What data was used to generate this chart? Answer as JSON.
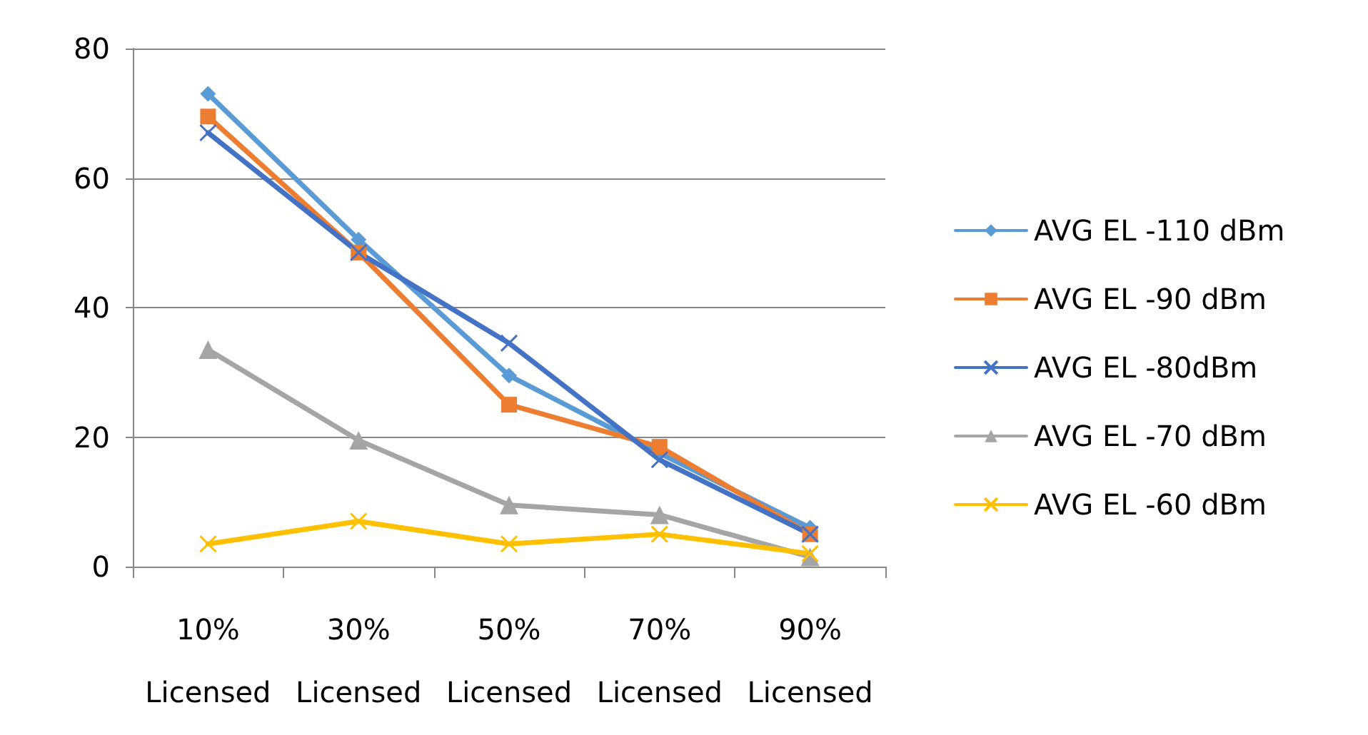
{
  "chart_data": {
    "type": "line",
    "categories": [
      "10% Licensed",
      "30% Licensed",
      "50% Licensed",
      "70% Licensed",
      "90% Licensed"
    ],
    "series": [
      {
        "name": "AVG EL -110 dBm",
        "color": "#5b9bd5",
        "marker": "diamond",
        "values": [
          73,
          50.5,
          29.5,
          17.5,
          6
        ]
      },
      {
        "name": "AVG EL -90 dBm",
        "color": "#ed7d31",
        "marker": "square",
        "values": [
          69.5,
          48.5,
          25,
          18.5,
          5
        ]
      },
      {
        "name": "AVG EL -80dBm",
        "color": "#4472c4",
        "marker": "cross",
        "values": [
          67,
          48.5,
          34.5,
          16.5,
          5
        ]
      },
      {
        "name": "AVG EL -70 dBm",
        "color": "#a5a5a5",
        "marker": "triangle",
        "values": [
          33.5,
          19.5,
          9.5,
          8,
          1.5
        ]
      },
      {
        "name": "AVG EL -60 dBm",
        "color": "#ffc000",
        "marker": "cross",
        "values": [
          3.5,
          7,
          3.5,
          5,
          2
        ]
      }
    ],
    "ylim": [
      0,
      80
    ],
    "yticks": [
      0,
      20,
      40,
      60,
      80
    ],
    "grid": "y",
    "legend": "right",
    "line_style": "solid"
  }
}
